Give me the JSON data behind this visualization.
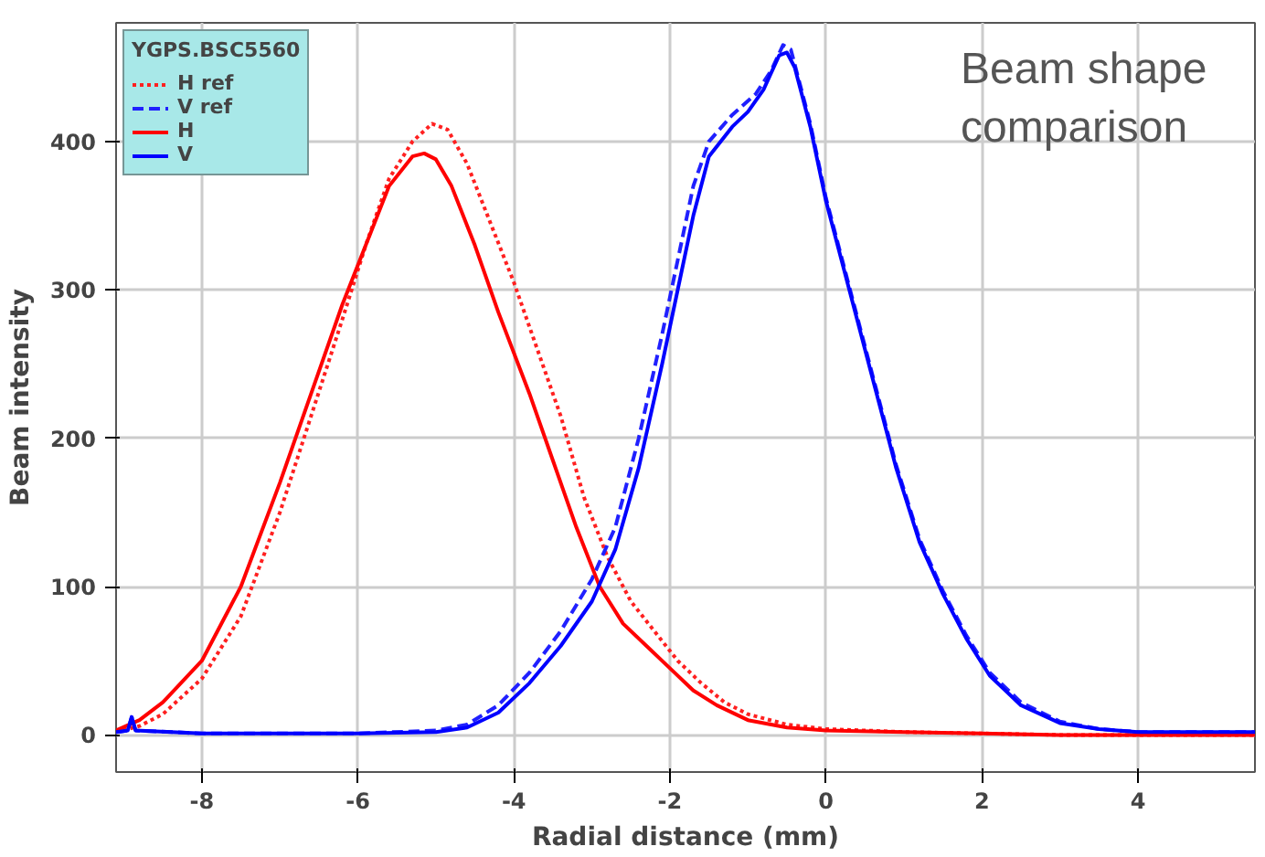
{
  "chart_data": {
    "type": "line",
    "xlabel": "Radial distance (mm)",
    "ylabel": "Beam intensity",
    "legend_title": "YGPS.BSC5560",
    "annotations": [
      "Beam shape\ncomparison"
    ],
    "xlim": [
      -9.1,
      5.5
    ],
    "ylim": [
      -25,
      480
    ],
    "xticks": [
      -8,
      -6,
      -4,
      -2,
      0,
      2,
      4
    ],
    "yticks": [
      0,
      100,
      200,
      300,
      400
    ],
    "grid": true,
    "legend": "top left",
    "marker": "none",
    "series": [
      {
        "name": "H ref",
        "color": "#ff2020",
        "line_style": "dotted",
        "x": [
          -9.1,
          -8.8,
          -8.5,
          -8,
          -7.5,
          -7,
          -6.6,
          -6.2,
          -5.9,
          -5.6,
          -5.3,
          -5.05,
          -4.85,
          -4.6,
          -4.3,
          -4,
          -3.7,
          -3.4,
          -3.1,
          -2.8,
          -2.5,
          -2.2,
          -1.9,
          -1.6,
          -1.3,
          -1,
          -0.5,
          0,
          1,
          2,
          3,
          5.5
        ],
        "values": [
          2,
          6,
          14,
          38,
          80,
          150,
          215,
          280,
          330,
          375,
          400,
          412,
          408,
          385,
          345,
          305,
          260,
          215,
          160,
          120,
          90,
          70,
          50,
          35,
          22,
          14,
          7,
          4,
          2,
          1,
          0,
          0
        ]
      },
      {
        "name": "V ref",
        "color": "#2020ff",
        "line_style": "dashed",
        "x": [
          -9.1,
          -8.95,
          -8.9,
          -8.85,
          -8,
          -6,
          -5,
          -4.6,
          -4.2,
          -3.8,
          -3.4,
          -3,
          -2.7,
          -2.4,
          -2.1,
          -1.9,
          -1.7,
          -1.5,
          -1.2,
          -0.9,
          -0.7,
          -0.55,
          -0.45,
          -0.2,
          0,
          0.3,
          0.6,
          0.9,
          1.2,
          1.5,
          1.8,
          2.1,
          2.5,
          3,
          3.5,
          4,
          5.5
        ],
        "values": [
          2,
          3,
          12,
          3,
          1,
          1,
          3,
          7,
          20,
          42,
          70,
          105,
          140,
          200,
          270,
          320,
          370,
          400,
          418,
          432,
          448,
          465,
          462,
          412,
          362,
          302,
          242,
          182,
          132,
          97,
          67,
          42,
          22,
          9,
          4,
          2,
          2
        ]
      },
      {
        "name": "H",
        "color": "#ff0000",
        "line_style": "solid",
        "x": [
          -9.1,
          -8.8,
          -8.5,
          -8,
          -7.5,
          -7,
          -6.6,
          -6.2,
          -5.9,
          -5.6,
          -5.3,
          -5.15,
          -5,
          -4.8,
          -4.5,
          -4.2,
          -3.8,
          -3.5,
          -3.2,
          -2.9,
          -2.6,
          -2.3,
          -2,
          -1.7,
          -1.4,
          -1,
          -0.5,
          0,
          1,
          2,
          3,
          4,
          5.5
        ],
        "values": [
          3,
          10,
          22,
          50,
          100,
          170,
          230,
          290,
          330,
          370,
          390,
          392,
          388,
          370,
          330,
          285,
          230,
          185,
          140,
          100,
          75,
          60,
          45,
          30,
          20,
          10,
          5,
          3,
          2,
          1,
          0,
          0,
          0
        ]
      },
      {
        "name": "V",
        "color": "#0000ff",
        "line_style": "solid",
        "x": [
          -9.1,
          -8.95,
          -8.9,
          -8.85,
          -8,
          -6,
          -5,
          -4.6,
          -4.2,
          -3.8,
          -3.4,
          -3,
          -2.7,
          -2.4,
          -2.1,
          -1.9,
          -1.7,
          -1.5,
          -1.2,
          -1,
          -0.8,
          -0.6,
          -0.5,
          -0.4,
          -0.2,
          0,
          0.3,
          0.6,
          0.9,
          1.2,
          1.5,
          1.8,
          2.1,
          2.5,
          3,
          3.5,
          4,
          5.5
        ],
        "values": [
          2,
          3,
          12,
          3,
          1,
          1,
          2,
          5,
          15,
          35,
          60,
          90,
          125,
          180,
          250,
          300,
          350,
          390,
          410,
          420,
          435,
          458,
          460,
          450,
          410,
          360,
          300,
          240,
          180,
          130,
          95,
          65,
          40,
          20,
          8,
          4,
          2,
          2
        ]
      }
    ]
  }
}
